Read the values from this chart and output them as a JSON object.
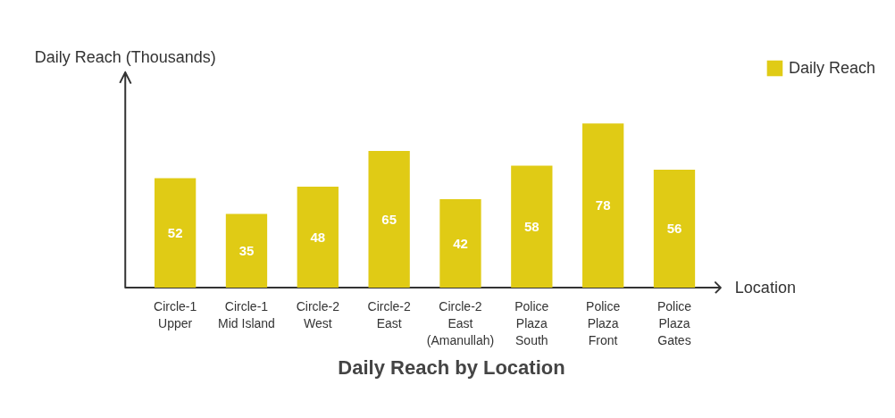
{
  "chart_data": {
    "type": "bar",
    "title": "Daily Reach by Location",
    "xlabel": "Location",
    "ylabel": "Daily Reach (Thousands)",
    "categories": [
      "Circle-1 Upper",
      "Circle-1 Mid Island",
      "Circle-2 West",
      "Circle-2 East",
      "Circle-2 East (Amanullah)",
      "Police Plaza South",
      "Police Plaza Front",
      "Police Plaza Gates"
    ],
    "series": [
      {
        "name": "Daily Reach",
        "color": "#e0cb15",
        "values": [
          52,
          35,
          48,
          65,
          42,
          58,
          78,
          56
        ]
      }
    ],
    "tick_labels": "x",
    "data_labels": true,
    "legend": "top right",
    "grid": false
  }
}
